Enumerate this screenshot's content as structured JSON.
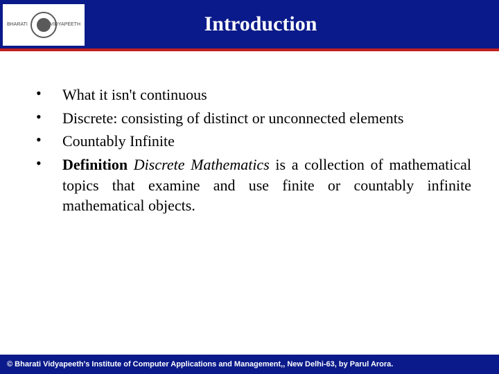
{
  "header": {
    "title": "Introduction",
    "logo": {
      "left_text": "BHARATI",
      "right_text": "VIDYAPEETH"
    },
    "bg_color": "#0a1a8a",
    "accent_color": "#c02020",
    "title_color": "#ffffff",
    "title_fontsize": 30
  },
  "bullets": [
    {
      "segments": [
        {
          "text": "What it isn't continuous",
          "bold": false,
          "italic": false
        }
      ]
    },
    {
      "segments": [
        {
          "text": "Discrete:  consisting of distinct or unconnected elements",
          "bold": false,
          "italic": false
        }
      ]
    },
    {
      "segments": [
        {
          "text": "Countably Infinite",
          "bold": false,
          "italic": false
        }
      ]
    },
    {
      "segments": [
        {
          "text": "Definition ",
          "bold": true,
          "italic": false
        },
        {
          "text": "Discrete Mathematics",
          "bold": false,
          "italic": true
        },
        {
          "text": " is a collection of mathematical topics that examine and use finite or countably infinite mathematical objects.",
          "bold": false,
          "italic": false
        }
      ]
    }
  ],
  "body": {
    "fontsize": 22,
    "text_color": "#000000"
  },
  "footer": {
    "text": "© Bharati Vidyapeeth's Institute of Computer Applications and Management,, New Delhi-63, by Parul Arora.",
    "bg_color": "#0a1a8a",
    "text_color": "#ffffff",
    "fontsize": 11
  }
}
